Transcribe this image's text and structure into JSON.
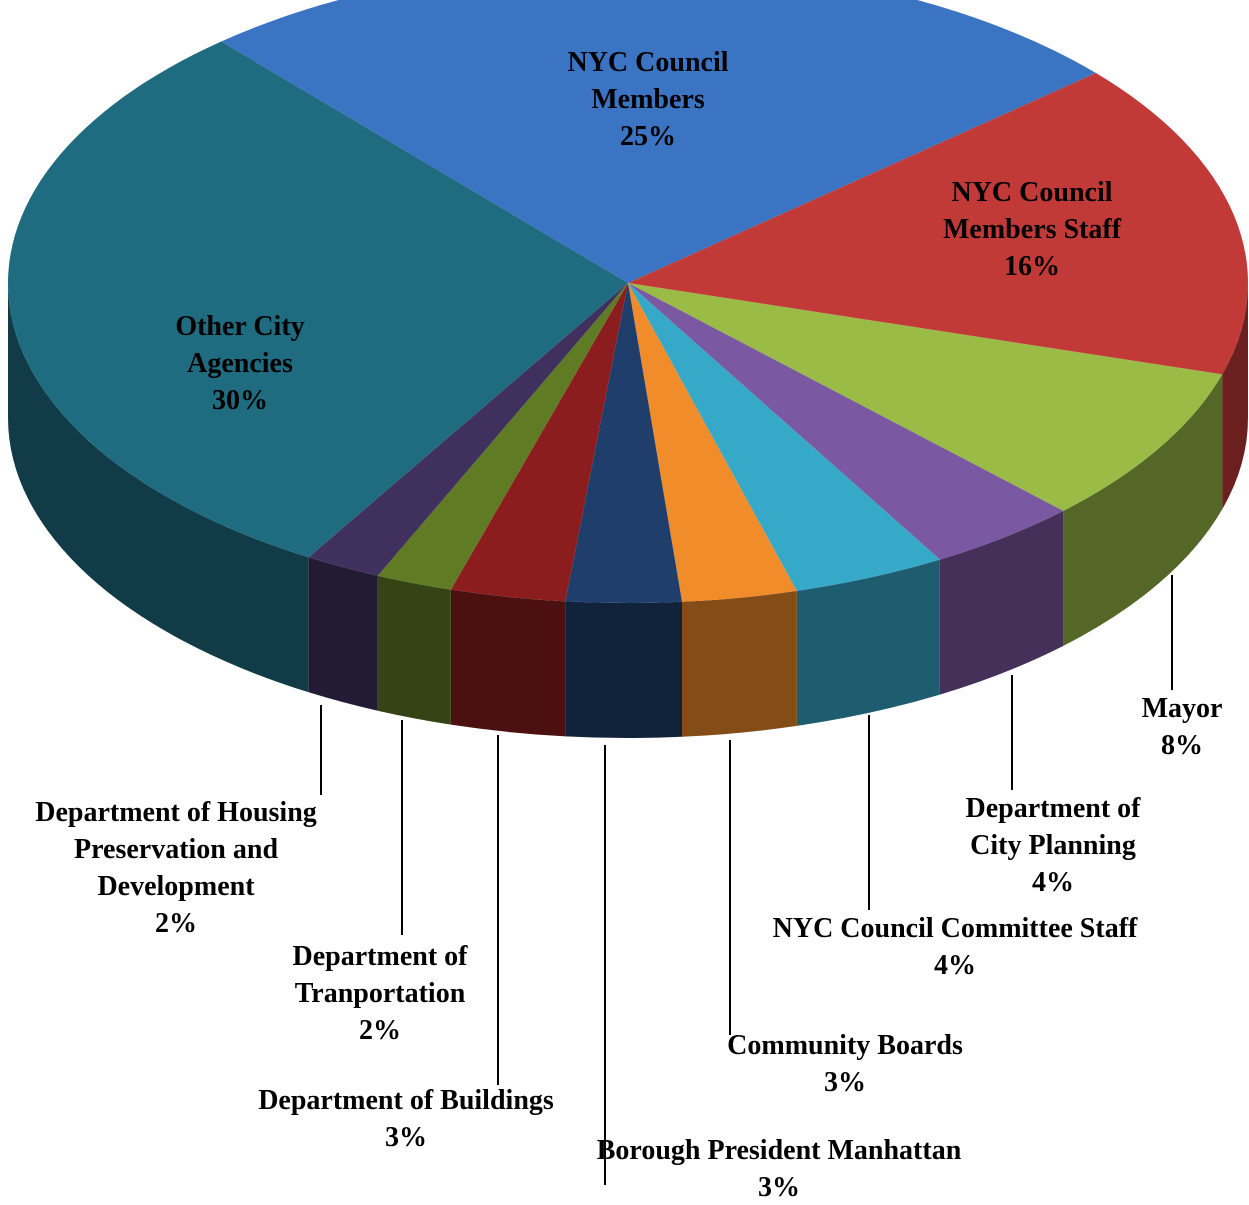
{
  "chart_data": {
    "type": "pie",
    "categories": [
      "NYC Council Members",
      "NYC Council Members Staff",
      "Mayor",
      "Department of City Planning",
      "NYC Council Committee Staff",
      "Community Boards",
      "Borough President Manhattan",
      "Department of Buildings",
      "Department of Tranportation",
      "Department of Housing Preservation and Development",
      "Other City Agencies"
    ],
    "values": [
      25,
      16,
      8,
      4,
      4,
      3,
      3,
      3,
      2,
      2,
      30
    ],
    "value_labels": [
      "25%",
      "16%",
      "8%",
      "4%",
      "4%",
      "3%",
      "3%",
      "3%",
      "2%",
      "2%",
      "30%"
    ],
    "colors": [
      "#3b74c2",
      "#c23a38",
      "#9bbb47",
      "#7b58a2",
      "#36a9c9",
      "#f08c2a",
      "#1f3e6c",
      "#8c1d1e",
      "#5f7b24",
      "#40305e",
      "#1f6b80"
    ]
  }
}
